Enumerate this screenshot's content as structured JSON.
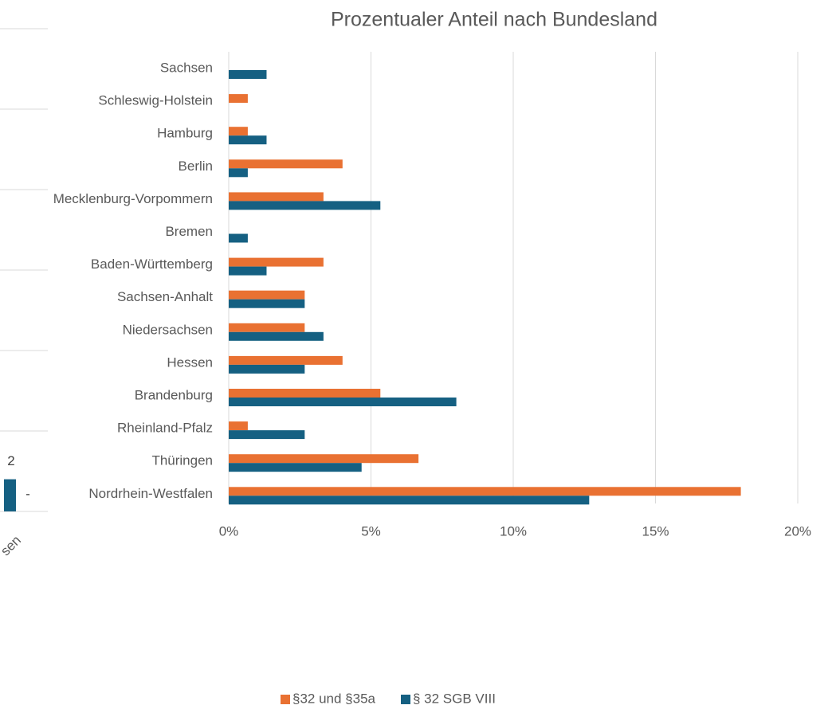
{
  "chart_data": [
    {
      "type": "hbar",
      "title": "Prozentualer Anteil nach Bundesland",
      "categories": [
        "Sachsen",
        "Schleswig-Holstein",
        "Hamburg",
        "Berlin",
        "Mecklenburg-Vorpommern",
        "Bremen",
        "Baden-Württemberg",
        "Sachsen-Anhalt",
        "Niedersachsen",
        "Hessen",
        "Brandenburg",
        "Rheinland-Pfalz",
        "Thüringen",
        "Nordrhein-Westfalen"
      ],
      "series": [
        {
          "name": "§32 und §35a",
          "color": "#e97132",
          "values": [
            0,
            0.67,
            0.67,
            4.0,
            3.33,
            0,
            3.33,
            2.67,
            2.67,
            4.0,
            5.33,
            0.67,
            6.67,
            18.0
          ]
        },
        {
          "name": "§ 32 SGB VIII",
          "color": "#156082",
          "values": [
            1.33,
            0,
            1.33,
            0.67,
            5.33,
            0.67,
            1.33,
            2.67,
            3.33,
            2.67,
            8.0,
            2.67,
            4.67,
            12.67
          ]
        }
      ],
      "xlim": [
        0,
        20
      ],
      "xticks": [
        {
          "value": 0,
          "label": "0%"
        },
        {
          "value": 5,
          "label": "5%"
        },
        {
          "value": 10,
          "label": "10%"
        },
        {
          "value": 15,
          "label": "15%"
        },
        {
          "value": 20,
          "label": "20%"
        }
      ],
      "grid": true,
      "legend": "bottom"
    },
    {
      "type": "bar",
      "categories": [
        "sen"
      ],
      "series": [
        {
          "color": "#156082",
          "values": [
            2
          ],
          "value_labels": [
            "2"
          ]
        },
        {
          "color": "#e97132",
          "values": [
            0
          ],
          "value_labels": [
            "-"
          ]
        }
      ],
      "ylim": [
        0,
        30
      ],
      "yticks": [
        0,
        5,
        10,
        15,
        20,
        25,
        30
      ],
      "grid": true
    }
  ]
}
